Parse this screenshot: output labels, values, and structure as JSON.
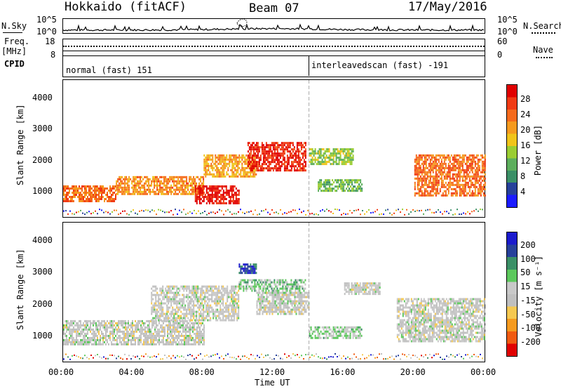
{
  "header": {
    "station": "Hokkaido (fitACF)",
    "beam": "Beam 07",
    "date": "17/May/2016"
  },
  "top_panels": {
    "nsky_label": "N.Sky",
    "nsky_ticks_left": [
      "10^5",
      "10^0"
    ],
    "nsky_ticks_right": [
      "10^5",
      "10^0"
    ],
    "nsearch_label": "N.Search",
    "freq_label": "Freq.",
    "freq_unit": "[MHz]",
    "freq_ticks": [
      "18",
      "8"
    ],
    "nave_ticks": [
      "60",
      "0"
    ],
    "nave_label": "Nave",
    "cpid_label": "CPID",
    "cpid_modes": [
      "normal (fast) 151",
      "interleavedscan (fast) -191"
    ]
  },
  "colors": {
    "power_scale": [
      "#1a1aff",
      "#26409a",
      "#3a8f66",
      "#5cae5c",
      "#9acd32",
      "#f0c419",
      "#f59a1e",
      "#f56a1c",
      "#f03a14",
      "#e00000"
    ],
    "velocity_scale": [
      "#e00000",
      "#f05a10",
      "#f59a1e",
      "#f5c850",
      "#bfbfbf",
      "#c8c8c8",
      "#5cc85c",
      "#3a8f66",
      "#26409a",
      "#1a1acd"
    ]
  },
  "chart_data": [
    {
      "type": "heatmap",
      "title": "",
      "xlabel": "Time UT",
      "ylabel": "Slant Range [km]",
      "x_ticks": [
        "00:00",
        "04:00",
        "08:00",
        "12:00",
        "16:00",
        "20:00",
        "00:00"
      ],
      "y_ticks": [
        "1000",
        "2000",
        "3000",
        "4000"
      ],
      "xlim": [
        0,
        24
      ],
      "ylim": [
        180,
        4600
      ],
      "colorbar": {
        "label": "Power [dB]",
        "ticks": [
          "28",
          "24",
          "20",
          "16",
          "12",
          "8",
          "4"
        ],
        "range": [
          0,
          32
        ]
      },
      "mode_change_hour": 14,
      "echo_regions": [
        {
          "t": [
            0,
            3
          ],
          "range": [
            700,
            1200
          ],
          "level": 24
        },
        {
          "t": [
            3,
            8
          ],
          "range": [
            900,
            1500
          ],
          "level": 22
        },
        {
          "t": [
            7.5,
            10
          ],
          "range": [
            600,
            1200
          ],
          "level": 30
        },
        {
          "t": [
            8,
            11
          ],
          "range": [
            1500,
            2200
          ],
          "level": 20
        },
        {
          "t": [
            10.5,
            13.8
          ],
          "range": [
            1700,
            2600
          ],
          "level": 29
        },
        {
          "t": [
            14,
            16.5
          ],
          "range": [
            1900,
            2400
          ],
          "level": 14
        },
        {
          "t": [
            14.5,
            17
          ],
          "range": [
            1000,
            1400
          ],
          "level": 12
        },
        {
          "t": [
            20,
            24
          ],
          "range": [
            900,
            2200
          ],
          "level": 24
        }
      ]
    },
    {
      "type": "heatmap",
      "title": "",
      "xlabel": "Time UT",
      "ylabel": "Slant Range [km]",
      "x_ticks": [
        "00:00",
        "04:00",
        "08:00",
        "12:00",
        "16:00",
        "20:00",
        "00:00"
      ],
      "y_ticks": [
        "1000",
        "2000",
        "3000",
        "4000"
      ],
      "xlim": [
        0,
        24
      ],
      "ylim": [
        180,
        4600
      ],
      "colorbar": {
        "label": "Velocity [m s⁻¹]",
        "ticks": [
          "200",
          "100",
          "50",
          "15",
          "-15",
          "-50",
          "-100",
          "-200"
        ],
        "range": [
          -250,
          250
        ]
      },
      "mode_change_hour": 14,
      "echo_regions": [
        {
          "t": [
            0,
            8
          ],
          "range": [
            700,
            1500
          ],
          "level": 0
        },
        {
          "t": [
            5,
            10
          ],
          "range": [
            1500,
            2600
          ],
          "level": 0
        },
        {
          "t": [
            10,
            13.8
          ],
          "range": [
            2400,
            2800
          ],
          "level": 60
        },
        {
          "t": [
            10,
            11
          ],
          "range": [
            3000,
            3300
          ],
          "level": 180
        },
        {
          "t": [
            11,
            14
          ],
          "range": [
            1700,
            2400
          ],
          "level": 0
        },
        {
          "t": [
            14,
            17
          ],
          "range": [
            900,
            1300
          ],
          "level": 50
        },
        {
          "t": [
            16,
            18
          ],
          "range": [
            2300,
            2700
          ],
          "level": 0
        },
        {
          "t": [
            19,
            24
          ],
          "range": [
            800,
            2200
          ],
          "level": 0
        }
      ]
    }
  ]
}
